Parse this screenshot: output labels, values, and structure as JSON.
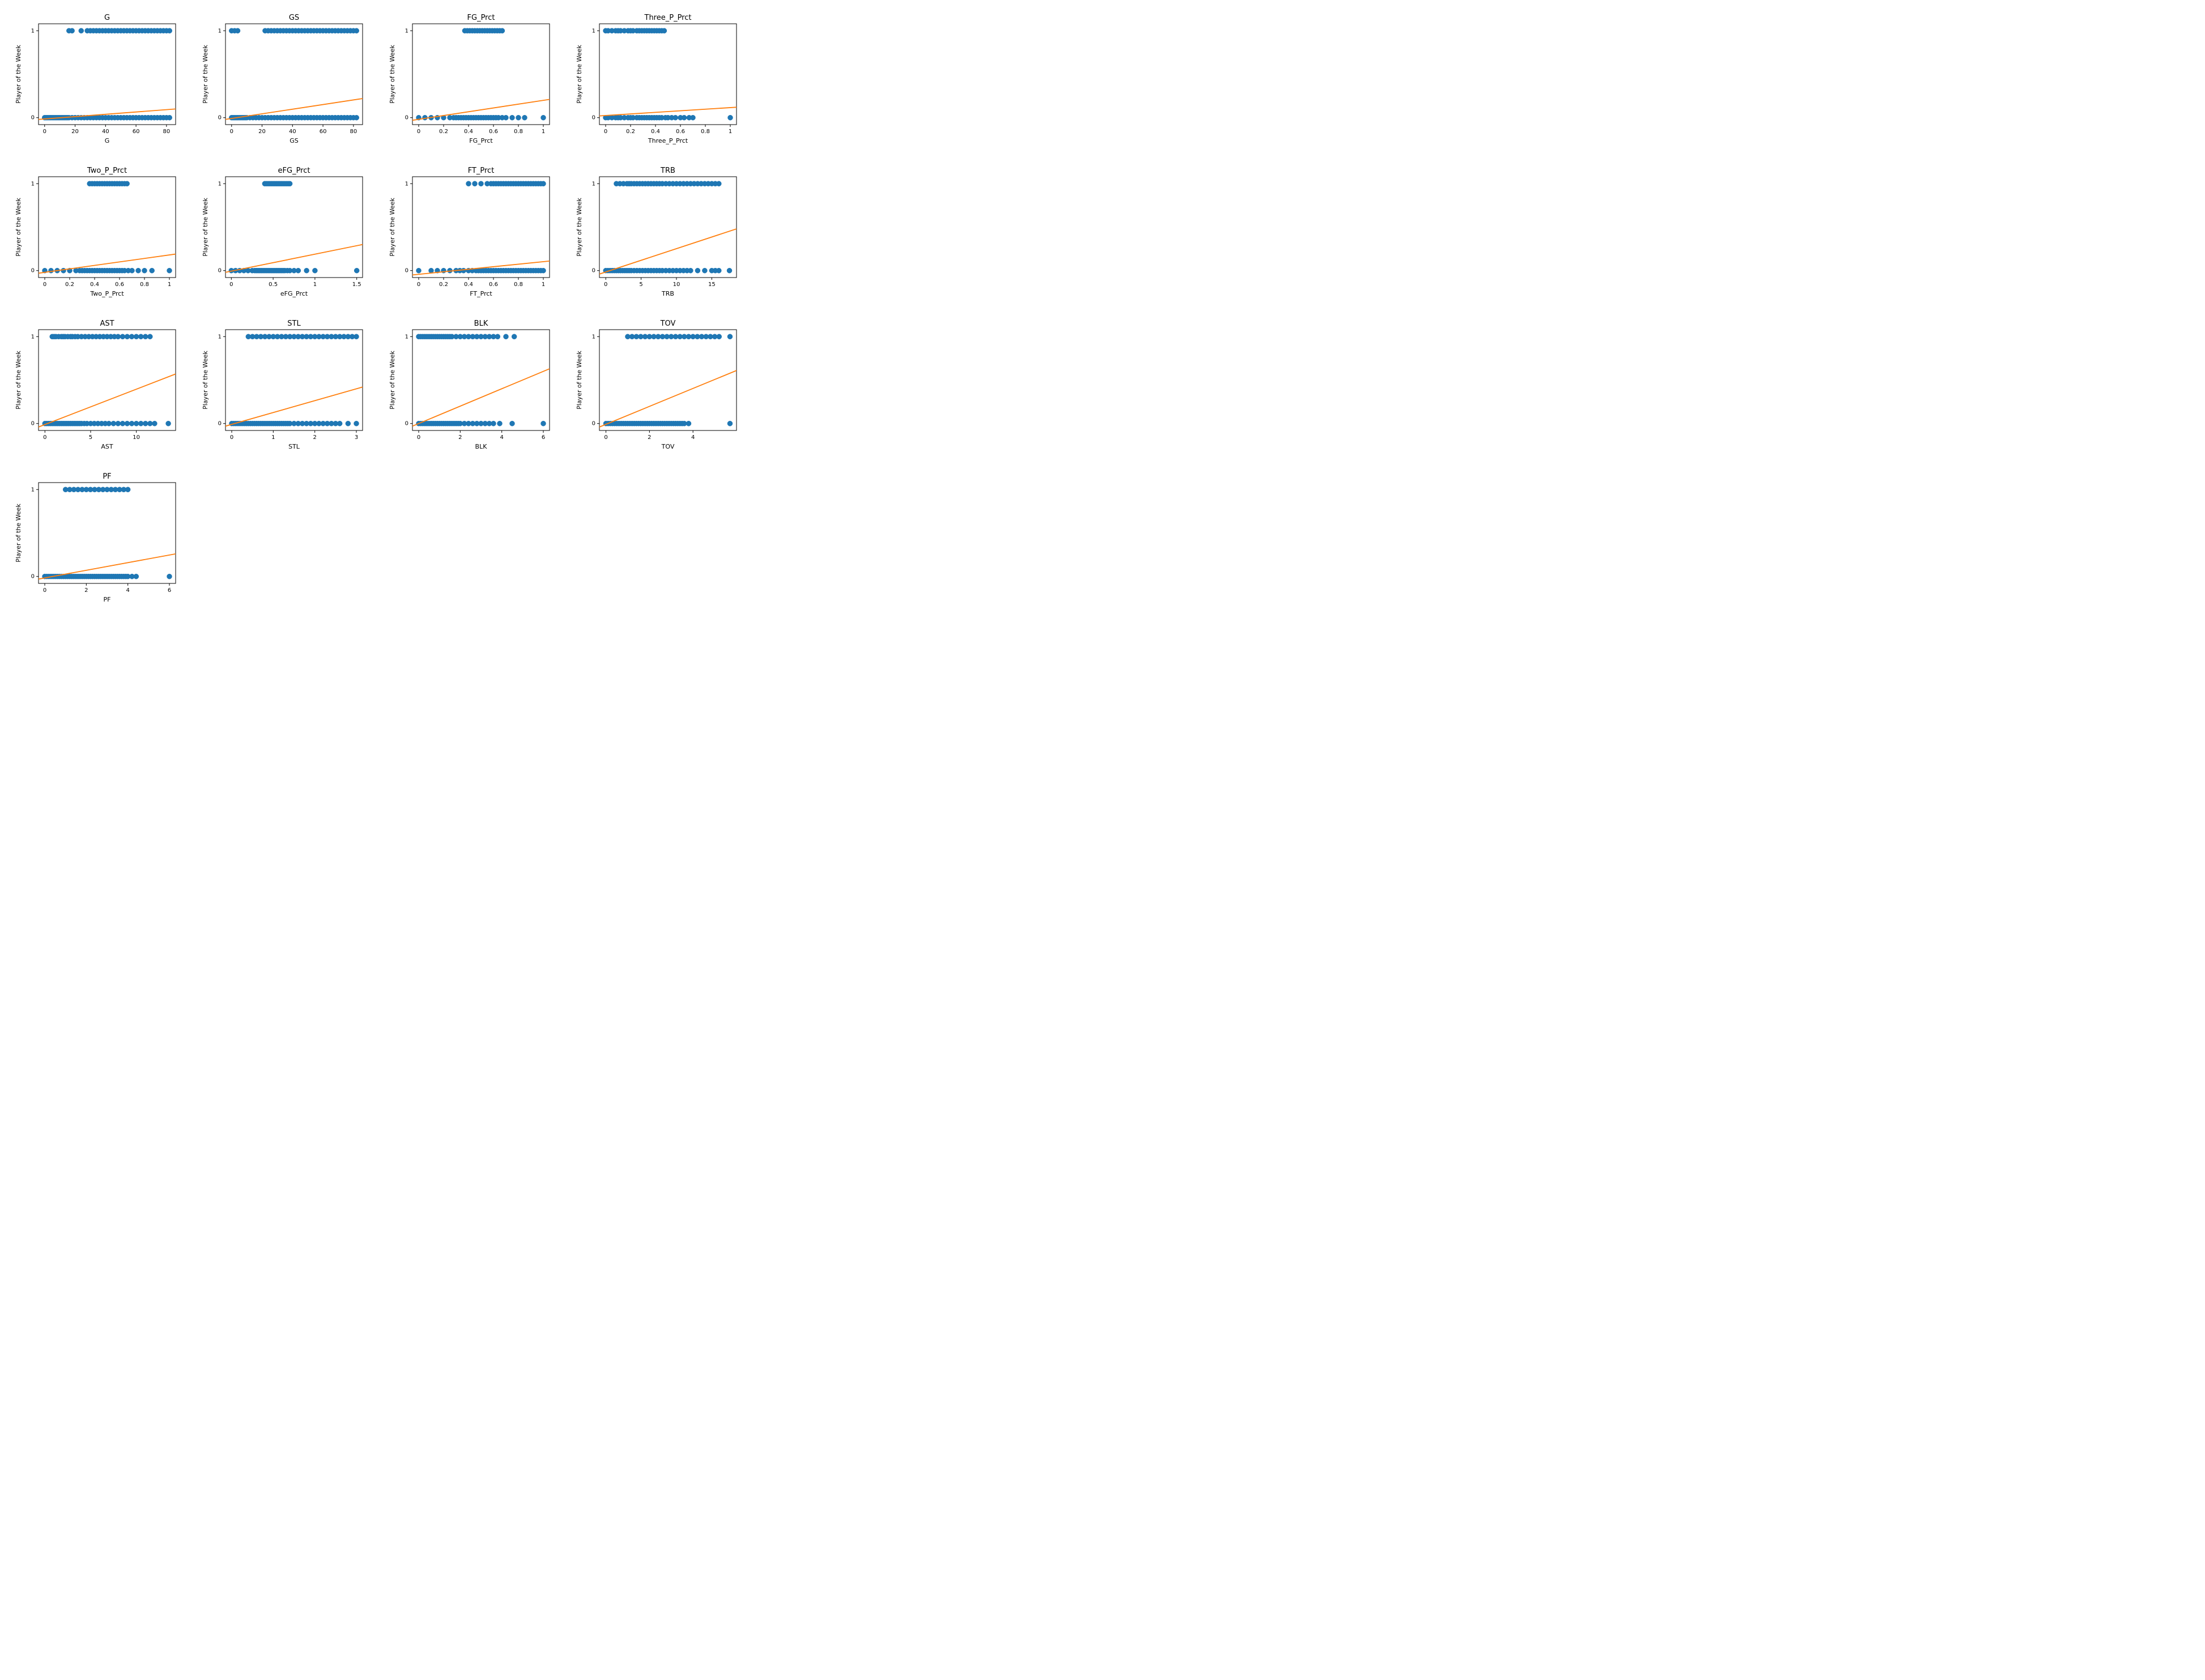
{
  "layout": {
    "rows": 4,
    "cols": 4
  },
  "global": {
    "ylabel": "Player of the Week",
    "ylim": [
      -0.08,
      1.08
    ],
    "yticks": [
      0,
      1
    ],
    "marker_radius": 4.5,
    "marker_color": "#1f77b4",
    "marker_edge": "#1f77b4",
    "line_color": "#ff7f0e",
    "line_width": 1.8,
    "background_color": "#ffffff",
    "border_color": "#000000",
    "tick_fontsize": 10,
    "label_fontsize": 11,
    "title_fontsize": 13
  },
  "subplots": [
    {
      "title": "G",
      "xlabel": "G",
      "xlim": [
        -4,
        86
      ],
      "xticks": [
        0,
        20,
        40,
        60,
        80
      ],
      "trend": {
        "y_at_xmin": -0.02,
        "y_at_xmax": 0.1
      },
      "points_y0": [
        0,
        1,
        2,
        3,
        4,
        5,
        6,
        7,
        8,
        9,
        10,
        11,
        12,
        13,
        14,
        15,
        16,
        18,
        20,
        22,
        24,
        26,
        28,
        30,
        32,
        34,
        36,
        38,
        40,
        42,
        44,
        46,
        48,
        50,
        52,
        54,
        56,
        58,
        60,
        62,
        64,
        66,
        68,
        70,
        72,
        74,
        76,
        78,
        80,
        82
      ],
      "points_y1": [
        16,
        18,
        24,
        28,
        30,
        32,
        34,
        36,
        38,
        40,
        42,
        44,
        46,
        48,
        50,
        52,
        54,
        56,
        58,
        60,
        62,
        64,
        66,
        68,
        70,
        72,
        74,
        76,
        78,
        80,
        82
      ]
    },
    {
      "title": "GS",
      "xlabel": "GS",
      "xlim": [
        -4,
        86
      ],
      "xticks": [
        0,
        20,
        40,
        60,
        80
      ],
      "trend": {
        "y_at_xmin": -0.02,
        "y_at_xmax": 0.22
      },
      "points_y0": [
        0,
        1,
        2,
        3,
        4,
        5,
        6,
        7,
        8,
        9,
        10,
        12,
        14,
        16,
        18,
        20,
        22,
        24,
        26,
        28,
        30,
        32,
        34,
        36,
        38,
        40,
        42,
        44,
        46,
        48,
        50,
        52,
        54,
        56,
        58,
        60,
        62,
        64,
        66,
        68,
        70,
        72,
        74,
        76,
        78,
        80,
        82
      ],
      "points_y1": [
        0,
        2,
        4,
        22,
        24,
        26,
        28,
        30,
        32,
        34,
        36,
        38,
        40,
        42,
        44,
        46,
        48,
        50,
        52,
        54,
        56,
        58,
        60,
        62,
        64,
        66,
        68,
        70,
        72,
        74,
        76,
        78,
        80,
        82
      ]
    },
    {
      "title": "FG_Prct",
      "xlabel": "FG_Prct",
      "xlim": [
        -0.05,
        1.05
      ],
      "xticks": [
        0.0,
        0.2,
        0.4,
        0.6,
        0.8,
        1.0
      ],
      "trend": {
        "y_at_xmin": -0.03,
        "y_at_xmax": 0.21
      },
      "points_y0": [
        0.0,
        0.05,
        0.1,
        0.15,
        0.2,
        0.25,
        0.28,
        0.3,
        0.32,
        0.34,
        0.36,
        0.38,
        0.4,
        0.42,
        0.44,
        0.46,
        0.48,
        0.5,
        0.52,
        0.54,
        0.56,
        0.58,
        0.6,
        0.62,
        0.64,
        0.67,
        0.7,
        0.75,
        0.8,
        0.85,
        1.0
      ],
      "points_y1": [
        0.37,
        0.39,
        0.41,
        0.43,
        0.45,
        0.47,
        0.49,
        0.51,
        0.53,
        0.55,
        0.57,
        0.59,
        0.61,
        0.63,
        0.65,
        0.67
      ]
    },
    {
      "title": "Three_P_Prct",
      "xlabel": "Three_P_Prct",
      "xlim": [
        -0.05,
        1.05
      ],
      "xticks": [
        0.0,
        0.2,
        0.4,
        0.6,
        0.8,
        1.0
      ],
      "trend": {
        "y_at_xmin": 0.02,
        "y_at_xmax": 0.12
      },
      "points_y0": [
        0.0,
        0.02,
        0.05,
        0.08,
        0.1,
        0.12,
        0.15,
        0.18,
        0.2,
        0.22,
        0.25,
        0.27,
        0.29,
        0.31,
        0.33,
        0.35,
        0.37,
        0.39,
        0.41,
        0.43,
        0.45,
        0.48,
        0.5,
        0.53,
        0.56,
        0.6,
        0.63,
        0.67,
        0.7,
        1.0
      ],
      "points_y1": [
        0.0,
        0.02,
        0.05,
        0.08,
        0.1,
        0.12,
        0.15,
        0.18,
        0.2,
        0.22,
        0.25,
        0.27,
        0.29,
        0.31,
        0.33,
        0.35,
        0.37,
        0.39,
        0.41,
        0.43,
        0.45,
        0.47
      ]
    },
    {
      "title": "Two_P_Prct",
      "xlabel": "Two_P_Prct",
      "xlim": [
        -0.05,
        1.05
      ],
      "xticks": [
        0.0,
        0.2,
        0.4,
        0.6,
        0.8,
        1.0
      ],
      "trend": {
        "y_at_xmin": -0.03,
        "y_at_xmax": 0.19
      },
      "points_y0": [
        0.0,
        0.05,
        0.1,
        0.15,
        0.2,
        0.25,
        0.28,
        0.3,
        0.32,
        0.34,
        0.36,
        0.38,
        0.4,
        0.42,
        0.44,
        0.46,
        0.48,
        0.5,
        0.52,
        0.54,
        0.56,
        0.58,
        0.6,
        0.62,
        0.64,
        0.67,
        0.7,
        0.75,
        0.8,
        0.86,
        1.0
      ],
      "points_y1": [
        0.36,
        0.38,
        0.4,
        0.42,
        0.44,
        0.46,
        0.48,
        0.5,
        0.52,
        0.54,
        0.56,
        0.58,
        0.6,
        0.62,
        0.64,
        0.66
      ]
    },
    {
      "title": "eFG_Prct",
      "xlabel": "eFG_Prct",
      "xlim": [
        -0.07,
        1.57
      ],
      "xticks": [
        0.0,
        0.5,
        1.0,
        1.5
      ],
      "trend": {
        "y_at_xmin": -0.02,
        "y_at_xmax": 0.3
      },
      "points_y0": [
        0.0,
        0.05,
        0.1,
        0.15,
        0.2,
        0.25,
        0.28,
        0.3,
        0.32,
        0.34,
        0.36,
        0.38,
        0.4,
        0.42,
        0.44,
        0.46,
        0.48,
        0.5,
        0.52,
        0.54,
        0.56,
        0.58,
        0.6,
        0.62,
        0.64,
        0.67,
        0.7,
        0.75,
        0.8,
        0.9,
        1.0,
        1.5
      ],
      "points_y1": [
        0.4,
        0.42,
        0.44,
        0.46,
        0.48,
        0.5,
        0.52,
        0.54,
        0.56,
        0.58,
        0.6,
        0.62,
        0.64,
        0.66,
        0.68,
        0.7
      ]
    },
    {
      "title": "FT_Prct",
      "xlabel": "FT_Prct",
      "xlim": [
        -0.05,
        1.05
      ],
      "xticks": [
        0.0,
        0.2,
        0.4,
        0.6,
        0.8,
        1.0
      ],
      "trend": {
        "y_at_xmin": -0.05,
        "y_at_xmax": 0.11
      },
      "points_y0": [
        0.0,
        0.1,
        0.15,
        0.2,
        0.25,
        0.3,
        0.33,
        0.36,
        0.4,
        0.43,
        0.46,
        0.48,
        0.5,
        0.52,
        0.54,
        0.56,
        0.58,
        0.6,
        0.62,
        0.64,
        0.66,
        0.68,
        0.7,
        0.72,
        0.74,
        0.76,
        0.78,
        0.8,
        0.82,
        0.84,
        0.86,
        0.88,
        0.9,
        0.92,
        0.94,
        0.96,
        0.98,
        1.0
      ],
      "points_y1": [
        0.4,
        0.45,
        0.5,
        0.55,
        0.58,
        0.6,
        0.62,
        0.64,
        0.66,
        0.68,
        0.7,
        0.72,
        0.74,
        0.76,
        0.78,
        0.8,
        0.82,
        0.84,
        0.86,
        0.88,
        0.9,
        0.92,
        0.94,
        0.96,
        0.98,
        1.0
      ]
    },
    {
      "title": "TRB",
      "xlabel": "TRB",
      "xlim": [
        -0.9,
        18.5
      ],
      "xticks": [
        0,
        5,
        10,
        15
      ],
      "trend": {
        "y_at_xmin": -0.04,
        "y_at_xmax": 0.48
      },
      "points_y0": [
        0,
        0.3,
        0.6,
        0.9,
        1.2,
        1.5,
        1.8,
        2.1,
        2.4,
        2.7,
        3.0,
        3.3,
        3.6,
        4.0,
        4.4,
        4.8,
        5.2,
        5.6,
        6.0,
        6.4,
        6.8,
        7.2,
        7.6,
        8.0,
        8.5,
        9.0,
        9.5,
        10.0,
        10.5,
        11.0,
        11.5,
        12.0,
        13.0,
        14.0,
        15.0,
        15.5,
        16.0,
        17.5
      ],
      "points_y1": [
        1.5,
        2.0,
        2.5,
        3.0,
        3.3,
        3.6,
        4.0,
        4.4,
        4.8,
        5.2,
        5.6,
        6.0,
        6.4,
        6.8,
        7.2,
        7.6,
        8.0,
        8.5,
        9.0,
        9.5,
        10.0,
        10.5,
        11.0,
        11.5,
        12.0,
        12.5,
        13.0,
        13.5,
        14.0,
        14.5,
        15.0,
        15.5,
        16.0
      ]
    },
    {
      "title": "AST",
      "xlabel": "AST",
      "xlim": [
        -0.7,
        14.3
      ],
      "xticks": [
        0,
        5,
        10
      ],
      "trend": {
        "y_at_xmin": -0.04,
        "y_at_xmax": 0.57
      },
      "points_y0": [
        0,
        0.2,
        0.4,
        0.6,
        0.8,
        1.0,
        1.2,
        1.4,
        1.6,
        1.8,
        2.0,
        2.2,
        2.4,
        2.6,
        2.8,
        3.0,
        3.2,
        3.4,
        3.6,
        3.8,
        4.0,
        4.3,
        4.6,
        5.0,
        5.4,
        5.8,
        6.2,
        6.6,
        7.0,
        7.5,
        8.0,
        8.5,
        9.0,
        9.5,
        10.0,
        10.5,
        11.0,
        11.5,
        12.0,
        13.5
      ],
      "points_y1": [
        0.8,
        1.0,
        1.2,
        1.5,
        1.8,
        2.0,
        2.2,
        2.5,
        2.8,
        3.0,
        3.3,
        3.6,
        4.0,
        4.4,
        4.8,
        5.2,
        5.6,
        6.0,
        6.4,
        6.8,
        7.2,
        7.6,
        8.0,
        8.5,
        9.0,
        9.5,
        10.0,
        10.5,
        11.0,
        11.5
      ]
    },
    {
      "title": "STL",
      "xlabel": "STL",
      "xlim": [
        -0.15,
        3.15
      ],
      "xticks": [
        0,
        1,
        2,
        3
      ],
      "trend": {
        "y_at_xmin": -0.03,
        "y_at_xmax": 0.42
      },
      "points_y0": [
        0,
        0.05,
        0.1,
        0.15,
        0.2,
        0.25,
        0.3,
        0.35,
        0.4,
        0.45,
        0.5,
        0.55,
        0.6,
        0.65,
        0.7,
        0.75,
        0.8,
        0.85,
        0.9,
        0.95,
        1.0,
        1.05,
        1.1,
        1.15,
        1.2,
        1.25,
        1.3,
        1.35,
        1.4,
        1.5,
        1.6,
        1.7,
        1.8,
        1.9,
        2.0,
        2.1,
        2.2,
        2.3,
        2.4,
        2.5,
        2.6,
        2.8,
        3.0
      ],
      "points_y1": [
        0.4,
        0.5,
        0.6,
        0.7,
        0.8,
        0.9,
        1.0,
        1.1,
        1.2,
        1.3,
        1.4,
        1.5,
        1.6,
        1.7,
        1.8,
        1.9,
        2.0,
        2.1,
        2.2,
        2.3,
        2.4,
        2.5,
        2.6,
        2.7,
        2.8,
        2.9,
        3.0
      ]
    },
    {
      "title": "BLK",
      "xlabel": "BLK",
      "xlim": [
        -0.3,
        6.3
      ],
      "xticks": [
        0,
        2,
        4,
        6
      ],
      "trend": {
        "y_at_xmin": -0.03,
        "y_at_xmax": 0.63
      },
      "points_y0": [
        0,
        0.1,
        0.2,
        0.3,
        0.4,
        0.5,
        0.6,
        0.7,
        0.8,
        0.9,
        1.0,
        1.1,
        1.2,
        1.3,
        1.4,
        1.5,
        1.6,
        1.7,
        1.8,
        1.9,
        2.0,
        2.2,
        2.4,
        2.6,
        2.8,
        3.0,
        3.2,
        3.4,
        3.6,
        3.9,
        4.5,
        6.0
      ],
      "points_y1": [
        0.0,
        0.1,
        0.2,
        0.3,
        0.4,
        0.5,
        0.6,
        0.7,
        0.8,
        0.9,
        1.0,
        1.1,
        1.2,
        1.3,
        1.4,
        1.5,
        1.6,
        1.8,
        2.0,
        2.2,
        2.4,
        2.6,
        2.8,
        3.0,
        3.2,
        3.4,
        3.6,
        3.8,
        4.2,
        4.6
      ]
    },
    {
      "title": "TOV",
      "xlabel": "TOV",
      "xlim": [
        -0.3,
        6.0
      ],
      "xticks": [
        0,
        2,
        4
      ],
      "trend": {
        "y_at_xmin": -0.04,
        "y_at_xmax": 0.61
      },
      "points_y0": [
        0,
        0.1,
        0.2,
        0.3,
        0.4,
        0.5,
        0.6,
        0.7,
        0.8,
        0.9,
        1.0,
        1.1,
        1.2,
        1.3,
        1.4,
        1.5,
        1.6,
        1.7,
        1.8,
        1.9,
        2.0,
        2.1,
        2.2,
        2.3,
        2.4,
        2.5,
        2.6,
        2.7,
        2.8,
        2.9,
        3.0,
        3.1,
        3.2,
        3.3,
        3.4,
        3.5,
        3.6,
        3.8,
        5.7
      ],
      "points_y1": [
        1.0,
        1.2,
        1.4,
        1.6,
        1.8,
        2.0,
        2.2,
        2.4,
        2.6,
        2.8,
        3.0,
        3.2,
        3.4,
        3.6,
        3.8,
        4.0,
        4.2,
        4.4,
        4.6,
        4.8,
        5.0,
        5.2,
        5.7
      ]
    },
    {
      "title": "PF",
      "xlabel": "PF",
      "xlim": [
        -0.3,
        6.3
      ],
      "xticks": [
        0,
        2,
        4,
        6
      ],
      "trend": {
        "y_at_xmin": -0.03,
        "y_at_xmax": 0.26
      },
      "points_y0": [
        0,
        0.1,
        0.2,
        0.3,
        0.4,
        0.5,
        0.6,
        0.7,
        0.8,
        0.9,
        1.0,
        1.1,
        1.2,
        1.3,
        1.4,
        1.5,
        1.6,
        1.7,
        1.8,
        1.9,
        2.0,
        2.1,
        2.2,
        2.3,
        2.4,
        2.5,
        2.6,
        2.7,
        2.8,
        2.9,
        3.0,
        3.1,
        3.2,
        3.3,
        3.4,
        3.5,
        3.6,
        3.7,
        3.8,
        3.9,
        4.0,
        4.2,
        4.4,
        6.0
      ],
      "points_y1": [
        1.0,
        1.2,
        1.4,
        1.6,
        1.8,
        2.0,
        2.2,
        2.4,
        2.6,
        2.8,
        3.0,
        3.2,
        3.4,
        3.6,
        3.8,
        4.0
      ]
    }
  ]
}
